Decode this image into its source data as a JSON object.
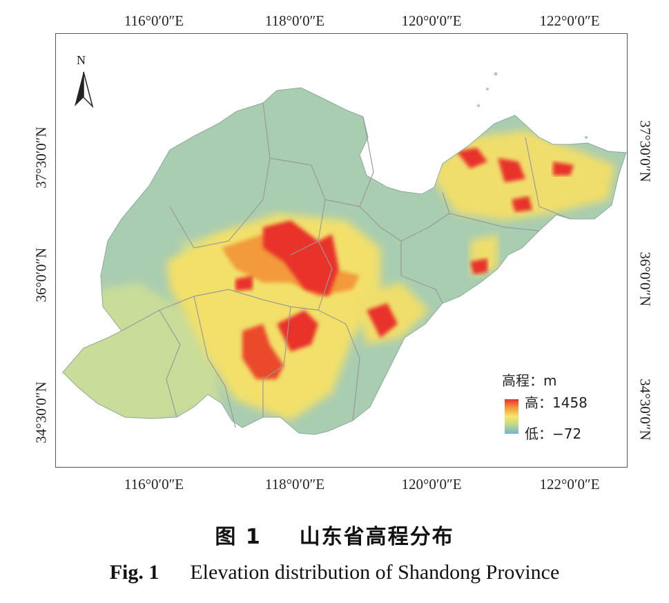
{
  "map": {
    "top_longitudes": [
      "116°0′0″E",
      "118°0′0″E",
      "120°0′0″E",
      "122°0′0″E"
    ],
    "bottom_longitudes": [
      "116°0′0″E",
      "118°0′0″E",
      "120°0′0″E",
      "122°0′0″E"
    ],
    "left_latitudes": [
      "37°30′0″N",
      "36°0′0″N",
      "34°30′0″N"
    ],
    "right_latitudes": [
      "37°30′0″N",
      "36°0′0″N",
      "34°30′0″N"
    ],
    "north_arrow_label": "N",
    "region": "Shandong Province"
  },
  "legend": {
    "title": "高程：m",
    "high_label": "高：1458",
    "low_label": "低：−72",
    "colors": {
      "high": "#e8322a",
      "mid": "#f7e86a",
      "low": "#6fb3d6"
    }
  },
  "caption": {
    "zh_prefix": "图 1",
    "zh_title": "山东省高程分布",
    "en_prefix": "Fig. 1",
    "en_title": "Elevation distribution of Shandong Province"
  },
  "colors": {
    "lowland": "#a9cdb0",
    "plain": "#c9dc9a",
    "hill": "#f2e06a",
    "mountain": "#e8322a",
    "boundary": "#9a9a9a"
  }
}
